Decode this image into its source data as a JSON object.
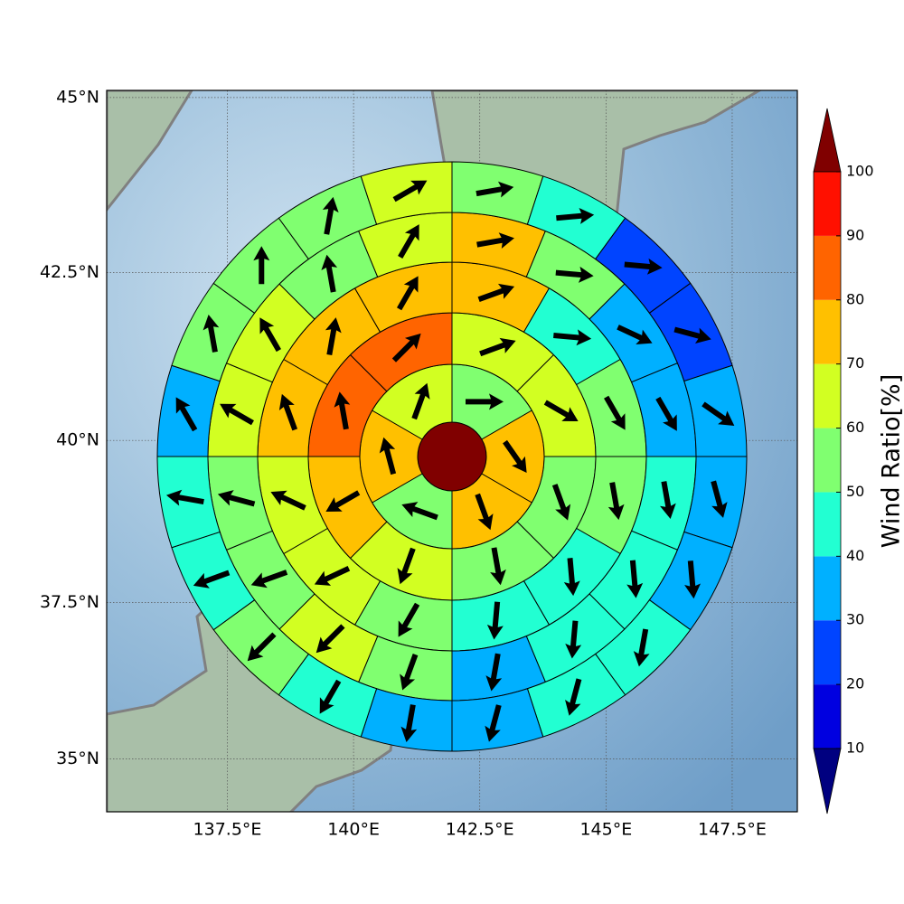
{
  "chart_data": {
    "type": "polar_sector_map",
    "colorbar_label": "Wind Ratio[%]",
    "xlim": [
      135.11,
      148.79
    ],
    "xticks": [
      {
        "value": 137.5,
        "label": "137.5°E"
      },
      {
        "value": 140,
        "label": "140°E"
      },
      {
        "value": 142.5,
        "label": "142.5°E"
      },
      {
        "value": 145,
        "label": "145°E"
      },
      {
        "value": 147.5,
        "label": "147.5°E"
      }
    ],
    "ylim": [
      34.14,
      45.1
    ],
    "yscale": "mercator",
    "yticks": [
      {
        "value": 45,
        "label": "45°N"
      },
      {
        "value": 42.5,
        "label": "42.5°N"
      },
      {
        "value": 40,
        "label": "40°N"
      },
      {
        "value": 37.5,
        "label": "37.5°N"
      },
      {
        "value": 35,
        "label": "35°N"
      }
    ],
    "grid": true,
    "levels": [
      10,
      20,
      30,
      40,
      50,
      60,
      70,
      80,
      90,
      100
    ],
    "colors": [
      "#000080",
      "#0000e0",
      "#0044ff",
      "#00b0ff",
      "#22ffd2",
      "#80ff70",
      "#d2ff22",
      "#ffc000",
      "#ff6400",
      "#ff1000",
      "#800000"
    ],
    "center_value": 105,
    "rings": [
      {
        "values": [
          55,
          75,
          75,
          55,
          75,
          65
        ],
        "directions": [
          90,
          145,
          160,
          290,
          345,
          20
        ]
      },
      {
        "values": [
          65,
          65,
          55,
          55,
          65,
          75,
          85,
          85
        ],
        "directions": [
          70,
          120,
          160,
          170,
          200,
          240,
          350,
          45
        ]
      },
      {
        "values": [
          75,
          45,
          55,
          55,
          45,
          45,
          55,
          65,
          65,
          75,
          75,
          75
        ],
        "directions": [
          70,
          95,
          150,
          170,
          175,
          185,
          210,
          245,
          295,
          340,
          10,
          30
        ]
      },
      {
        "values": [
          75,
          55,
          35,
          35,
          45,
          45,
          45,
          35,
          55,
          65,
          55,
          55,
          65,
          65,
          55,
          65
        ],
        "directions": [
          80,
          95,
          115,
          150,
          170,
          175,
          185,
          190,
          200,
          225,
          250,
          285,
          300,
          330,
          350,
          30
        ]
      },
      {
        "values": [
          55,
          45,
          20,
          25,
          35,
          35,
          35,
          45,
          45,
          35,
          35,
          45,
          55,
          45,
          45,
          35,
          55,
          55,
          55,
          65
        ],
        "directions": [
          80,
          85,
          95,
          105,
          125,
          165,
          175,
          190,
          195,
          195,
          190,
          210,
          225,
          250,
          280,
          330,
          350,
          0,
          10,
          60
        ]
      }
    ]
  }
}
